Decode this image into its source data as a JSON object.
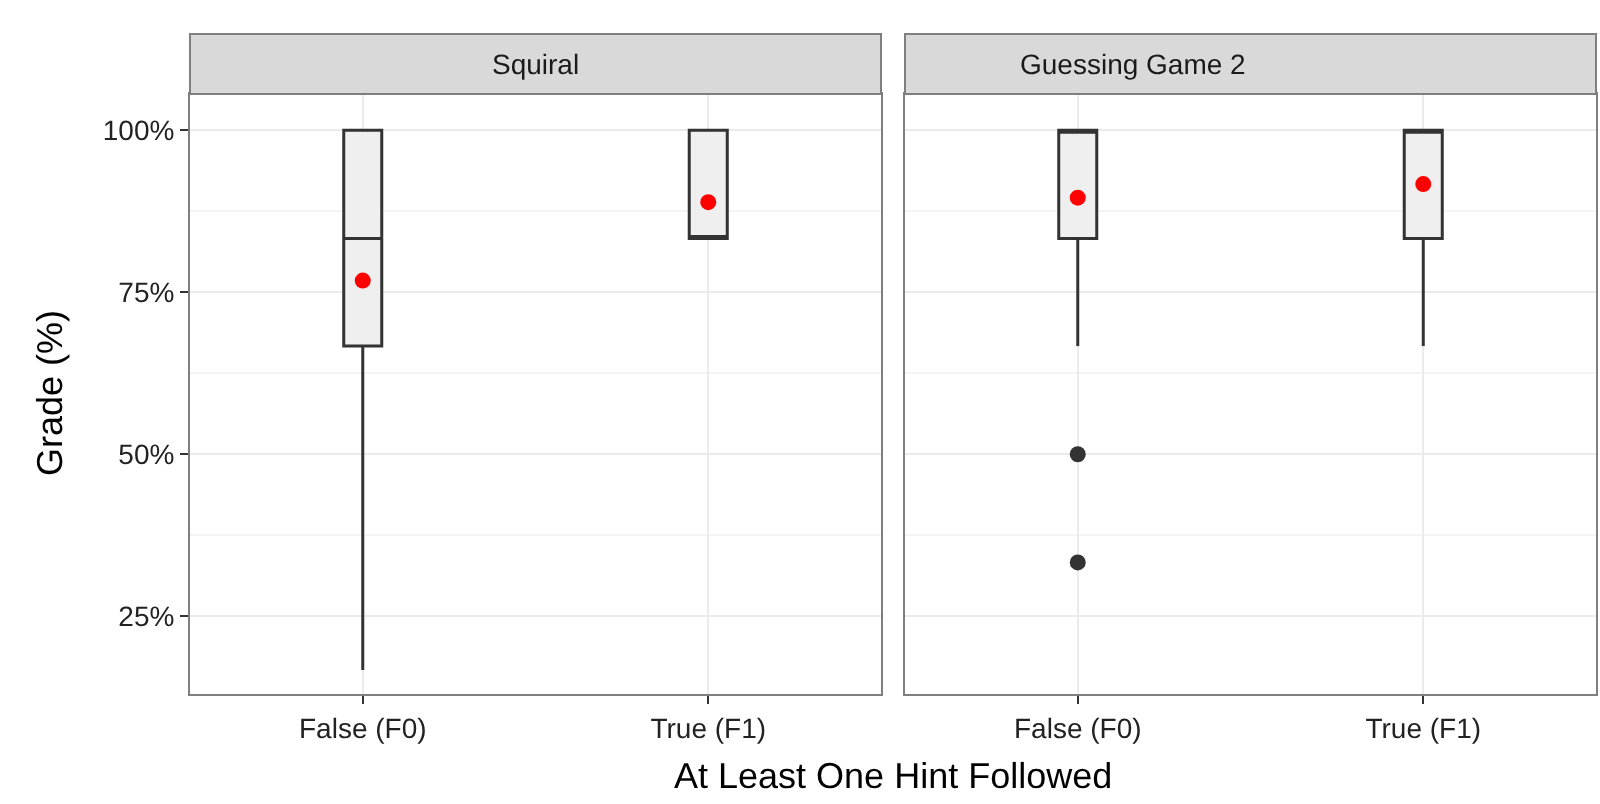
{
  "chart_data": [
    {
      "type": "box",
      "title": "Squiral",
      "xlabel": "At Least One Hint Followed",
      "ylabel": "Grade (%)",
      "categories": [
        "False (F0)",
        "True (F1)"
      ],
      "boxes": [
        {
          "low": 16.7,
          "q1": 66.7,
          "median": 83.3,
          "q3": 100,
          "high": 100,
          "mean": 76.8
        },
        {
          "low": 83.3,
          "q1": 83.3,
          "median": 83.3,
          "q3": 100,
          "high": 100,
          "mean": 88.9
        }
      ],
      "ylim": [
        13,
        105.6
      ],
      "yticks": [
        {
          "value": 25,
          "label": "25%"
        },
        {
          "value": 50,
          "label": "50%"
        },
        {
          "value": 75,
          "label": "75%"
        },
        {
          "value": 100,
          "label": "100%"
        }
      ],
      "grid": true
    },
    {
      "type": "box",
      "title": "Guessing Game 2",
      "categories": [
        "False (F0)",
        "True (F1)"
      ],
      "boxes": [
        {
          "low": 66.7,
          "q1": 83.3,
          "median": 100,
          "q3": 100,
          "high": 100,
          "mean": 89.6,
          "outliers": [
            50,
            33.3
          ]
        },
        {
          "low": 66.7,
          "q1": 83.3,
          "median": 100,
          "q3": 100,
          "high": 100,
          "mean": 91.7
        }
      ],
      "ylim": [
        13,
        105.6
      ],
      "yticks": [
        25,
        50,
        75,
        100
      ],
      "grid": true,
      "tick_labels": "x"
    }
  ]
}
